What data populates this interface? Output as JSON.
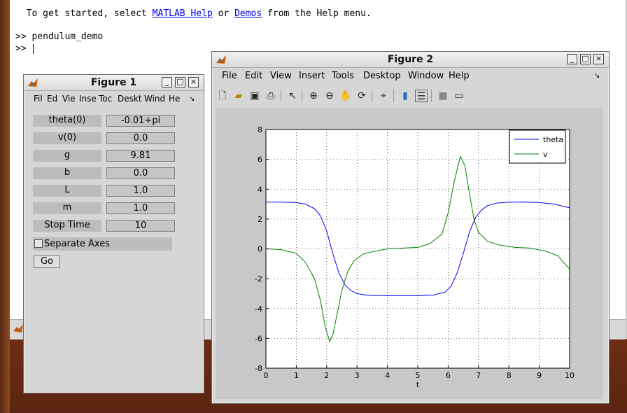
{
  "command_window": {
    "intro_prefix": "  To get started, select ",
    "link_help": "MATLAB Help",
    "intro_or": " or ",
    "link_demos": "Demos",
    "intro_suffix": " from the Help menu.",
    "prompt1": ">> pendulum_demo",
    "prompt2": ">> "
  },
  "figure1": {
    "title": "Figure 1",
    "menu": [
      "Fil",
      "Ed",
      "Vie",
      "Inse",
      "Toc",
      "Deskt",
      "Wind",
      "He"
    ],
    "params": [
      {
        "label": "theta(0)",
        "value": "-0.01+pi"
      },
      {
        "label": "v(0)",
        "value": "0.0"
      },
      {
        "label": "g",
        "value": "9.81"
      },
      {
        "label": "b",
        "value": "0.0"
      },
      {
        "label": "L",
        "value": "1.0"
      },
      {
        "label": "m",
        "value": "1.0"
      },
      {
        "label": "Stop Time",
        "value": "10"
      }
    ],
    "separate_axes_label": "Separate Axes",
    "separate_axes_checked": false,
    "go_label": "Go"
  },
  "figure2": {
    "title": "Figure 2",
    "menu": [
      "File",
      "Edit",
      "View",
      "Insert",
      "Tools",
      "Desktop",
      "Window",
      "Help"
    ],
    "toolbar_icons": [
      "new-file-icon",
      "open-folder-icon",
      "save-icon",
      "print-icon",
      "arrow-select-icon",
      "zoom-in-icon",
      "zoom-out-icon",
      "pan-hand-icon",
      "rotate-3d-icon",
      "data-cursor-icon",
      "colorbar-icon",
      "legend-icon",
      "hide-plot-tools-icon",
      "show-plot-tools-icon"
    ]
  },
  "chart_data": {
    "type": "line",
    "xlabel": "t",
    "ylabel": "",
    "title": "",
    "xlim": [
      0,
      10
    ],
    "ylim": [
      -8,
      8
    ],
    "xticks": [
      0,
      1,
      2,
      3,
      4,
      5,
      6,
      7,
      8,
      9,
      10
    ],
    "yticks": [
      -8,
      -6,
      -4,
      -2,
      0,
      2,
      4,
      6,
      8
    ],
    "grid": true,
    "legend_position": "top-right",
    "series": [
      {
        "name": "theta",
        "color": "#0000ff",
        "x": [
          0,
          0.5,
          1,
          1.3,
          1.6,
          1.8,
          2.0,
          2.2,
          2.4,
          2.6,
          2.8,
          3.0,
          3.3,
          3.6,
          4,
          4.5,
          5,
          5.5,
          5.9,
          6.1,
          6.3,
          6.5,
          6.7,
          6.9,
          7.1,
          7.3,
          7.6,
          8,
          8.5,
          9,
          9.5,
          10
        ],
        "y": [
          3.13,
          3.13,
          3.1,
          3.0,
          2.7,
          2.2,
          1.2,
          -0.3,
          -1.6,
          -2.4,
          -2.8,
          -3.0,
          -3.1,
          -3.13,
          -3.14,
          -3.14,
          -3.14,
          -3.1,
          -2.9,
          -2.5,
          -1.6,
          -0.3,
          1.1,
          2.1,
          2.6,
          2.9,
          3.07,
          3.13,
          3.14,
          3.1,
          3.0,
          2.75
        ]
      },
      {
        "name": "v",
        "color": "#008000",
        "x": [
          0,
          0.5,
          1,
          1.3,
          1.6,
          1.8,
          1.95,
          2.1,
          2.2,
          2.35,
          2.5,
          2.7,
          2.9,
          3.2,
          3.6,
          4,
          4.5,
          5,
          5.4,
          5.8,
          6.0,
          6.2,
          6.4,
          6.55,
          6.7,
          6.85,
          7.0,
          7.3,
          7.7,
          8.2,
          8.7,
          9.2,
          9.6,
          10
        ],
        "y": [
          0,
          -0.05,
          -0.3,
          -0.9,
          -2.0,
          -3.5,
          -5.2,
          -6.2,
          -5.8,
          -4.3,
          -2.8,
          -1.5,
          -0.8,
          -0.35,
          -0.15,
          0,
          0.05,
          0.1,
          0.35,
          1.0,
          2.4,
          4.5,
          6.2,
          5.6,
          3.7,
          2.0,
          1.1,
          0.5,
          0.25,
          0.1,
          0.05,
          -0.15,
          -0.45,
          -1.35
        ]
      }
    ]
  }
}
